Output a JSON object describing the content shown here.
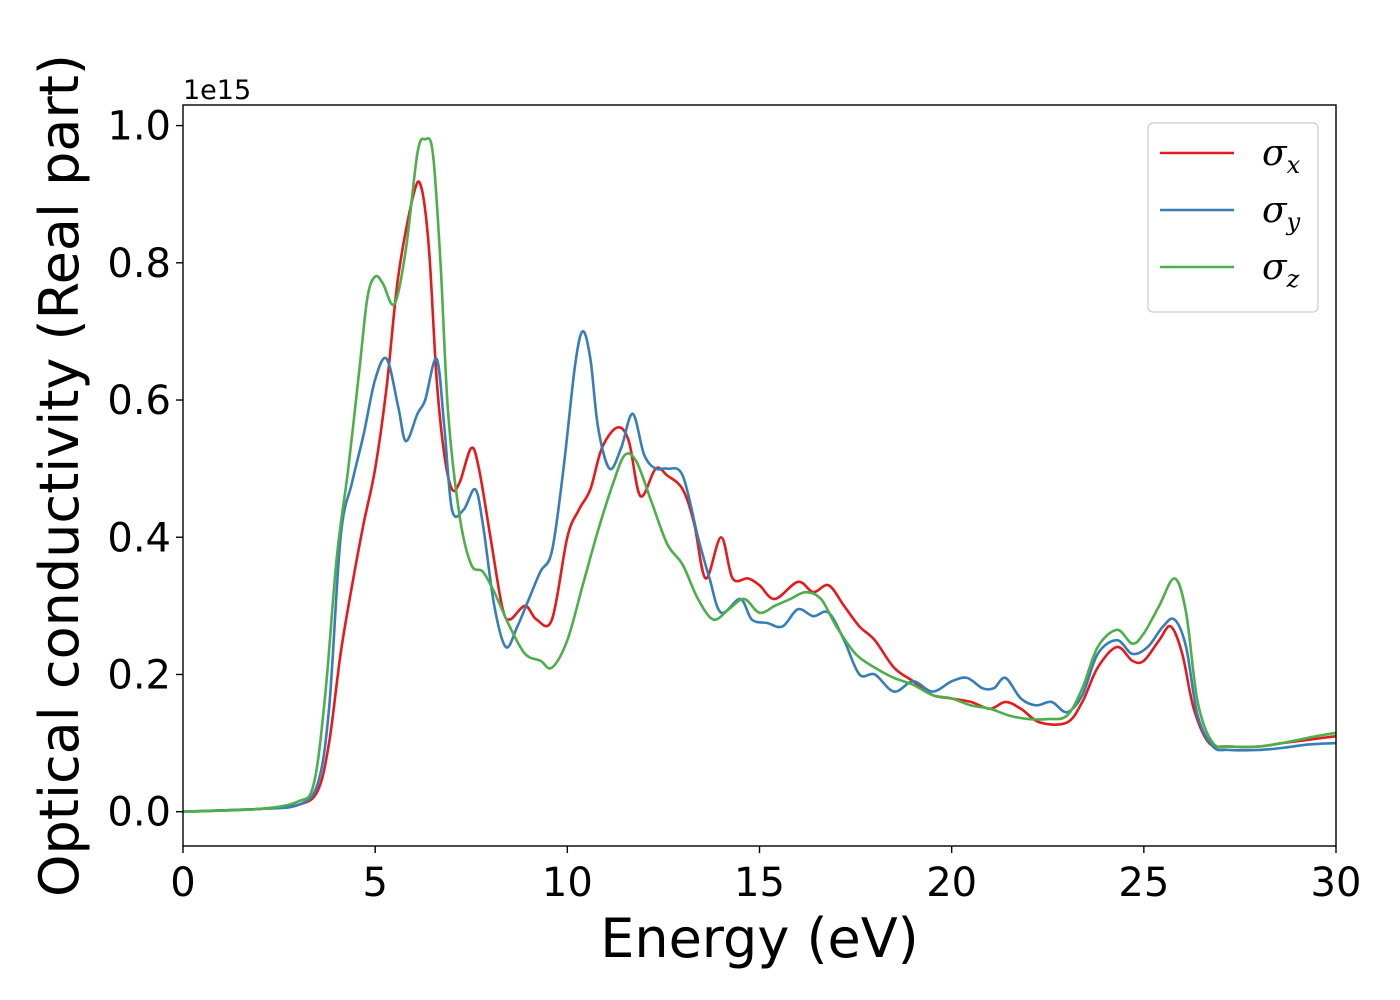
{
  "chart_data": {
    "type": "line",
    "title": "",
    "xlabel": "Energy (eV)",
    "ylabel": "Optical conductivity (Real part)",
    "y_offset_label": "1e15",
    "xlim": [
      0,
      30
    ],
    "ylim": [
      -0.05,
      1.03
    ],
    "xticks": [
      0,
      5,
      10,
      15,
      20,
      25,
      30
    ],
    "xtick_labels": [
      "0",
      "5",
      "10",
      "15",
      "20",
      "25",
      "30"
    ],
    "yticks": [
      0.0,
      0.2,
      0.4,
      0.6,
      0.8,
      1.0
    ],
    "ytick_labels": [
      "0.0",
      "0.2",
      "0.4",
      "0.6",
      "0.8",
      "1.0"
    ],
    "grid": false,
    "legend_position": "top-right",
    "series": [
      {
        "name": "σ",
        "name_sub": "x",
        "color": "#e41a1c",
        "points": [
          [
            0,
            0
          ],
          [
            2,
            0.004
          ],
          [
            3,
            0.01
          ],
          [
            3.5,
            0.03
          ],
          [
            3.8,
            0.1
          ],
          [
            4.1,
            0.23
          ],
          [
            4.4,
            0.33
          ],
          [
            4.7,
            0.42
          ],
          [
            5.0,
            0.5
          ],
          [
            5.3,
            0.62
          ],
          [
            5.6,
            0.78
          ],
          [
            6.0,
            0.9
          ],
          [
            6.2,
            0.91
          ],
          [
            6.4,
            0.82
          ],
          [
            6.6,
            0.63
          ],
          [
            6.8,
            0.52
          ],
          [
            7.0,
            0.47
          ],
          [
            7.2,
            0.48
          ],
          [
            7.5,
            0.53
          ],
          [
            7.7,
            0.5
          ],
          [
            8.0,
            0.4
          ],
          [
            8.3,
            0.3
          ],
          [
            8.5,
            0.28
          ],
          [
            8.9,
            0.3
          ],
          [
            9.2,
            0.28
          ],
          [
            9.6,
            0.28
          ],
          [
            10.0,
            0.4
          ],
          [
            10.3,
            0.44
          ],
          [
            10.6,
            0.47
          ],
          [
            10.9,
            0.53
          ],
          [
            11.3,
            0.56
          ],
          [
            11.6,
            0.54
          ],
          [
            11.9,
            0.46
          ],
          [
            12.3,
            0.5
          ],
          [
            12.6,
            0.49
          ],
          [
            13.0,
            0.47
          ],
          [
            13.3,
            0.42
          ],
          [
            13.6,
            0.34
          ],
          [
            14.0,
            0.4
          ],
          [
            14.3,
            0.34
          ],
          [
            14.7,
            0.34
          ],
          [
            15.0,
            0.33
          ],
          [
            15.4,
            0.31
          ],
          [
            16.0,
            0.335
          ],
          [
            16.4,
            0.32
          ],
          [
            16.8,
            0.33
          ],
          [
            17.2,
            0.3
          ],
          [
            17.6,
            0.27
          ],
          [
            18.0,
            0.25
          ],
          [
            18.5,
            0.21
          ],
          [
            19.0,
            0.19
          ],
          [
            19.5,
            0.17
          ],
          [
            20.0,
            0.165
          ],
          [
            20.5,
            0.16
          ],
          [
            21.0,
            0.15
          ],
          [
            21.4,
            0.16
          ],
          [
            21.8,
            0.15
          ],
          [
            22.3,
            0.13
          ],
          [
            23.0,
            0.13
          ],
          [
            23.4,
            0.16
          ],
          [
            23.8,
            0.21
          ],
          [
            24.3,
            0.24
          ],
          [
            24.7,
            0.22
          ],
          [
            25.0,
            0.22
          ],
          [
            25.4,
            0.25
          ],
          [
            25.7,
            0.27
          ],
          [
            26.0,
            0.23
          ],
          [
            26.3,
            0.15
          ],
          [
            26.7,
            0.1
          ],
          [
            27.2,
            0.095
          ],
          [
            28.0,
            0.095
          ],
          [
            28.6,
            0.1
          ],
          [
            29.3,
            0.105
          ],
          [
            30.0,
            0.11
          ]
        ]
      },
      {
        "name": "σ",
        "name_sub": "y",
        "color": "#377eb8",
        "points": [
          [
            0,
            0
          ],
          [
            2,
            0.004
          ],
          [
            3,
            0.01
          ],
          [
            3.5,
            0.04
          ],
          [
            3.8,
            0.15
          ],
          [
            4.1,
            0.4
          ],
          [
            4.4,
            0.48
          ],
          [
            4.7,
            0.55
          ],
          [
            5.0,
            0.63
          ],
          [
            5.3,
            0.66
          ],
          [
            5.6,
            0.59
          ],
          [
            5.8,
            0.54
          ],
          [
            6.1,
            0.58
          ],
          [
            6.3,
            0.6
          ],
          [
            6.6,
            0.66
          ],
          [
            6.8,
            0.56
          ],
          [
            7.0,
            0.44
          ],
          [
            7.3,
            0.44
          ],
          [
            7.6,
            0.47
          ],
          [
            7.8,
            0.42
          ],
          [
            8.1,
            0.3
          ],
          [
            8.4,
            0.24
          ],
          [
            8.7,
            0.27
          ],
          [
            9.0,
            0.31
          ],
          [
            9.3,
            0.35
          ],
          [
            9.6,
            0.38
          ],
          [
            9.9,
            0.5
          ],
          [
            10.2,
            0.65
          ],
          [
            10.4,
            0.7
          ],
          [
            10.6,
            0.66
          ],
          [
            10.8,
            0.56
          ],
          [
            11.1,
            0.5
          ],
          [
            11.4,
            0.53
          ],
          [
            11.7,
            0.58
          ],
          [
            12.0,
            0.52
          ],
          [
            12.3,
            0.5
          ],
          [
            12.6,
            0.5
          ],
          [
            13.0,
            0.49
          ],
          [
            13.4,
            0.4
          ],
          [
            13.7,
            0.34
          ],
          [
            14.0,
            0.29
          ],
          [
            14.5,
            0.31
          ],
          [
            14.8,
            0.28
          ],
          [
            15.2,
            0.275
          ],
          [
            15.6,
            0.27
          ],
          [
            16.0,
            0.295
          ],
          [
            16.4,
            0.285
          ],
          [
            16.8,
            0.29
          ],
          [
            17.2,
            0.25
          ],
          [
            17.6,
            0.2
          ],
          [
            18.0,
            0.2
          ],
          [
            18.5,
            0.175
          ],
          [
            19.0,
            0.19
          ],
          [
            19.5,
            0.175
          ],
          [
            20.0,
            0.19
          ],
          [
            20.4,
            0.195
          ],
          [
            20.8,
            0.18
          ],
          [
            21.1,
            0.18
          ],
          [
            21.4,
            0.195
          ],
          [
            21.8,
            0.165
          ],
          [
            22.2,
            0.155
          ],
          [
            22.6,
            0.16
          ],
          [
            23.0,
            0.145
          ],
          [
            23.4,
            0.17
          ],
          [
            23.8,
            0.23
          ],
          [
            24.3,
            0.25
          ],
          [
            24.7,
            0.23
          ],
          [
            25.1,
            0.24
          ],
          [
            25.5,
            0.27
          ],
          [
            25.8,
            0.28
          ],
          [
            26.1,
            0.24
          ],
          [
            26.4,
            0.14
          ],
          [
            26.8,
            0.095
          ],
          [
            27.2,
            0.09
          ],
          [
            28.0,
            0.09
          ],
          [
            28.6,
            0.093
          ],
          [
            29.3,
            0.098
          ],
          [
            30.0,
            0.1
          ]
        ]
      },
      {
        "name": "σ",
        "name_sub": "z",
        "color": "#4daf4a",
        "points": [
          [
            0,
            0
          ],
          [
            2,
            0.004
          ],
          [
            3,
            0.015
          ],
          [
            3.4,
            0.04
          ],
          [
            3.7,
            0.17
          ],
          [
            4.0,
            0.37
          ],
          [
            4.3,
            0.5
          ],
          [
            4.6,
            0.65
          ],
          [
            4.8,
            0.75
          ],
          [
            5.0,
            0.78
          ],
          [
            5.2,
            0.77
          ],
          [
            5.5,
            0.74
          ],
          [
            5.8,
            0.82
          ],
          [
            6.1,
            0.96
          ],
          [
            6.3,
            0.98
          ],
          [
            6.5,
            0.96
          ],
          [
            6.7,
            0.8
          ],
          [
            6.9,
            0.58
          ],
          [
            7.2,
            0.43
          ],
          [
            7.5,
            0.36
          ],
          [
            7.8,
            0.35
          ],
          [
            8.1,
            0.32
          ],
          [
            8.5,
            0.27
          ],
          [
            8.9,
            0.23
          ],
          [
            9.3,
            0.22
          ],
          [
            9.6,
            0.21
          ],
          [
            10.0,
            0.25
          ],
          [
            10.4,
            0.33
          ],
          [
            10.8,
            0.41
          ],
          [
            11.2,
            0.48
          ],
          [
            11.5,
            0.52
          ],
          [
            11.8,
            0.51
          ],
          [
            12.2,
            0.45
          ],
          [
            12.6,
            0.39
          ],
          [
            13.0,
            0.36
          ],
          [
            13.4,
            0.31
          ],
          [
            13.8,
            0.28
          ],
          [
            14.2,
            0.295
          ],
          [
            14.6,
            0.31
          ],
          [
            15.0,
            0.29
          ],
          [
            15.4,
            0.3
          ],
          [
            15.8,
            0.31
          ],
          [
            16.2,
            0.32
          ],
          [
            16.6,
            0.31
          ],
          [
            17.0,
            0.27
          ],
          [
            17.5,
            0.23
          ],
          [
            18.0,
            0.21
          ],
          [
            18.5,
            0.195
          ],
          [
            19.0,
            0.185
          ],
          [
            19.5,
            0.17
          ],
          [
            20.0,
            0.165
          ],
          [
            20.5,
            0.155
          ],
          [
            21.0,
            0.15
          ],
          [
            21.5,
            0.14
          ],
          [
            22.0,
            0.135
          ],
          [
            22.5,
            0.135
          ],
          [
            23.0,
            0.14
          ],
          [
            23.4,
            0.18
          ],
          [
            23.8,
            0.24
          ],
          [
            24.3,
            0.265
          ],
          [
            24.7,
            0.245
          ],
          [
            25.0,
            0.26
          ],
          [
            25.4,
            0.3
          ],
          [
            25.8,
            0.34
          ],
          [
            26.1,
            0.29
          ],
          [
            26.4,
            0.16
          ],
          [
            26.8,
            0.1
          ],
          [
            27.3,
            0.095
          ],
          [
            28.0,
            0.095
          ],
          [
            28.6,
            0.1
          ],
          [
            29.3,
            0.108
          ],
          [
            30.0,
            0.115
          ]
        ]
      }
    ]
  }
}
